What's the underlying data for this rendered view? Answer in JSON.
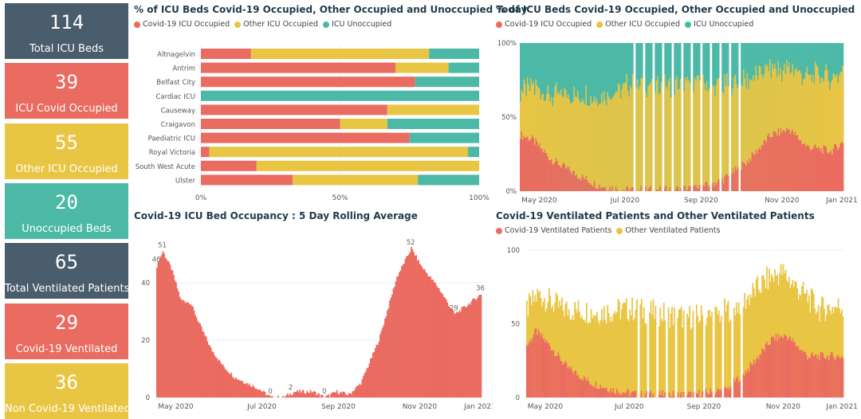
{
  "colors": {
    "covid": "#ea6b60",
    "other": "#e9c544",
    "unocc": "#4cb9a7",
    "dark": "#4a5d6d"
  },
  "cards": [
    {
      "value": "114",
      "label": "Total ICU Beds",
      "color": "#4a5d6d"
    },
    {
      "value": "39",
      "label": "ICU Covid Occupied",
      "color": "#ea6b60"
    },
    {
      "value": "55",
      "label": "Other ICU Occupied",
      "color": "#e9c544"
    },
    {
      "value": "20",
      "label": "Unoccupied Beds",
      "color": "#4cb9a7"
    },
    {
      "value": "65",
      "label": "Total Ventilated Patients",
      "color": "#4a5d6d"
    },
    {
      "value": "29",
      "label": "Covid-19 Ventilated",
      "color": "#ea6b60"
    },
    {
      "value": "36",
      "label": "Non Covid-19 Ventilated",
      "color": "#e9c544"
    }
  ],
  "chart_data": [
    {
      "type": "bar",
      "orientation": "horizontal-stacked-100",
      "title": "% of ICU Beds Covid-19 Occupied, Other Occupied and Unoccupied Today",
      "legend": [
        "Covid-19 ICU Occupied",
        "Other ICU Occupied",
        "ICU Unoccupied"
      ],
      "categories": [
        "Altnagelvin",
        "Antrim",
        "Belfast City",
        "Cardiac ICU",
        "Causeway",
        "Craigavon",
        "Paediatric ICU",
        "Royal Victoria",
        "South West Acute",
        "Ulster"
      ],
      "series": [
        {
          "name": "Covid-19 ICU Occupied",
          "values": [
            18,
            70,
            77,
            0,
            67,
            50,
            75,
            3,
            20,
            33
          ]
        },
        {
          "name": "Other ICU Occupied",
          "values": [
            64,
            19,
            0,
            0,
            33,
            17,
            0,
            93,
            80,
            45
          ]
        },
        {
          "name": "ICU Unoccupied",
          "values": [
            18,
            11,
            23,
            100,
            0,
            33,
            25,
            4,
            0,
            22
          ]
        }
      ],
      "x_ticks": [
        "0%",
        "50%",
        "100%"
      ]
    },
    {
      "type": "bar",
      "orientation": "vertical-stacked-100-daily",
      "title": "% of ICU Beds Covid-19 Occupied, Other Occupied and Unoccupied",
      "legend": [
        "Covid-19 ICU Occupied",
        "Other ICU Occupied",
        "ICU Unoccupied"
      ],
      "x_ticks": [
        "May 2020",
        "Jul 2020",
        "Sep 2020",
        "Nov 2020",
        "Jan 2021"
      ],
      "y_ticks": [
        "0%",
        "50%",
        "100%"
      ],
      "keypoints_covid_pct": [
        [
          0,
          38
        ],
        [
          10,
          35
        ],
        [
          25,
          22
        ],
        [
          45,
          12
        ],
        [
          65,
          4
        ],
        [
          85,
          1
        ],
        [
          120,
          1
        ],
        [
          150,
          2
        ],
        [
          170,
          8
        ],
        [
          190,
          20
        ],
        [
          210,
          38
        ],
        [
          225,
          42
        ],
        [
          240,
          30
        ],
        [
          260,
          27
        ],
        [
          270,
          33
        ]
      ],
      "keypoints_other_pct": [
        [
          0,
          30
        ],
        [
          20,
          40
        ],
        [
          50,
          55
        ],
        [
          90,
          70
        ],
        [
          150,
          70
        ],
        [
          190,
          55
        ],
        [
          220,
          40
        ],
        [
          250,
          50
        ],
        [
          270,
          48
        ]
      ]
    },
    {
      "type": "bar",
      "orientation": "vertical-daily",
      "title": "Covid-19 ICU Bed Occupancy : 5 Day Rolling Average",
      "x_ticks": [
        "May 2020",
        "Jul 2020",
        "Sep 2020",
        "Nov 2020",
        "Jan 2021"
      ],
      "y_ticks": [
        "0",
        "20",
        "40"
      ],
      "ylim": [
        0,
        55
      ],
      "data_labels": [
        "51",
        "46",
        "0",
        "2",
        "0",
        "52",
        "29",
        "36"
      ],
      "keypoints": [
        [
          0,
          46
        ],
        [
          5,
          51
        ],
        [
          12,
          45
        ],
        [
          20,
          34
        ],
        [
          28,
          33
        ],
        [
          35,
          26
        ],
        [
          45,
          17
        ],
        [
          55,
          11
        ],
        [
          65,
          7
        ],
        [
          75,
          5
        ],
        [
          85,
          3
        ],
        [
          95,
          0
        ],
        [
          105,
          0
        ],
        [
          115,
          2
        ],
        [
          130,
          2
        ],
        [
          140,
          0
        ],
        [
          150,
          2
        ],
        [
          160,
          1
        ],
        [
          170,
          5
        ],
        [
          185,
          20
        ],
        [
          200,
          42
        ],
        [
          212,
          52
        ],
        [
          220,
          46
        ],
        [
          235,
          38
        ],
        [
          248,
          29
        ],
        [
          258,
          32
        ],
        [
          270,
          36
        ]
      ]
    },
    {
      "type": "bar",
      "orientation": "vertical-stacked-daily",
      "title": "Covid-19 Ventilated Patients and Other Ventilated Patients",
      "legend": [
        "Covid-19 Ventilated Patients",
        "Other Ventilated Patients"
      ],
      "x_ticks": [
        "May 2020",
        "Jul 2020",
        "Sep 2020",
        "Nov 2020",
        "Jan 2021"
      ],
      "y_ticks": [
        "0",
        "50",
        "100"
      ],
      "ylim": [
        0,
        100
      ],
      "keypoints_covid": [
        [
          0,
          35
        ],
        [
          8,
          45
        ],
        [
          20,
          35
        ],
        [
          35,
          20
        ],
        [
          55,
          10
        ],
        [
          75,
          5
        ],
        [
          95,
          2
        ],
        [
          140,
          2
        ],
        [
          170,
          5
        ],
        [
          190,
          20
        ],
        [
          210,
          40
        ],
        [
          222,
          42
        ],
        [
          240,
          28
        ],
        [
          270,
          28
        ]
      ],
      "keypoints_total": [
        [
          0,
          60
        ],
        [
          10,
          70
        ],
        [
          30,
          60
        ],
        [
          60,
          58
        ],
        [
          90,
          60
        ],
        [
          130,
          55
        ],
        [
          160,
          55
        ],
        [
          185,
          65
        ],
        [
          205,
          80
        ],
        [
          218,
          85
        ],
        [
          230,
          75
        ],
        [
          250,
          60
        ],
        [
          270,
          62
        ]
      ]
    }
  ]
}
